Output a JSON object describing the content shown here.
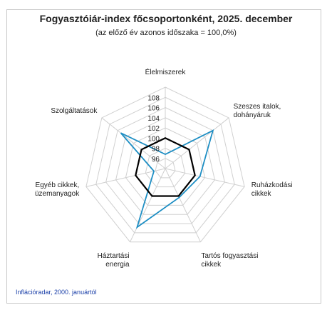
{
  "chart_data": {
    "type": "radar",
    "title": "Fogyasztóiár-index főcsoportonként, 2025. december",
    "subtitle": "(az előző év azonos időszaka = 100,0%)",
    "source": "Inflációradar, 2000. januártól",
    "categories": [
      [
        "Élelmiszerek"
      ],
      [
        "Szeszes italok,",
        "dohányáruk"
      ],
      [
        "Ruházkodási",
        "cikkek"
      ],
      [
        "Tartós fogyasztási",
        "cikkek"
      ],
      [
        "Háztartási",
        "energia"
      ],
      [
        "Egyéb cikkek,",
        "üzemanyagok"
      ],
      [
        "Szolgáltatások"
      ]
    ],
    "axis": {
      "min": 94,
      "max": 110,
      "step": 2,
      "ticks": [
        96,
        98,
        100,
        102,
        104,
        106,
        108
      ]
    },
    "grid": true,
    "series": [
      {
        "color": "#1f8fc4",
        "values": [
          96.8,
          106.0,
          101.0,
          100.3,
          106.8,
          96.3,
          105.2
        ]
      },
      {
        "color": "#000000",
        "values": [
          100,
          100,
          100,
          100,
          100,
          100,
          100
        ]
      }
    ]
  }
}
